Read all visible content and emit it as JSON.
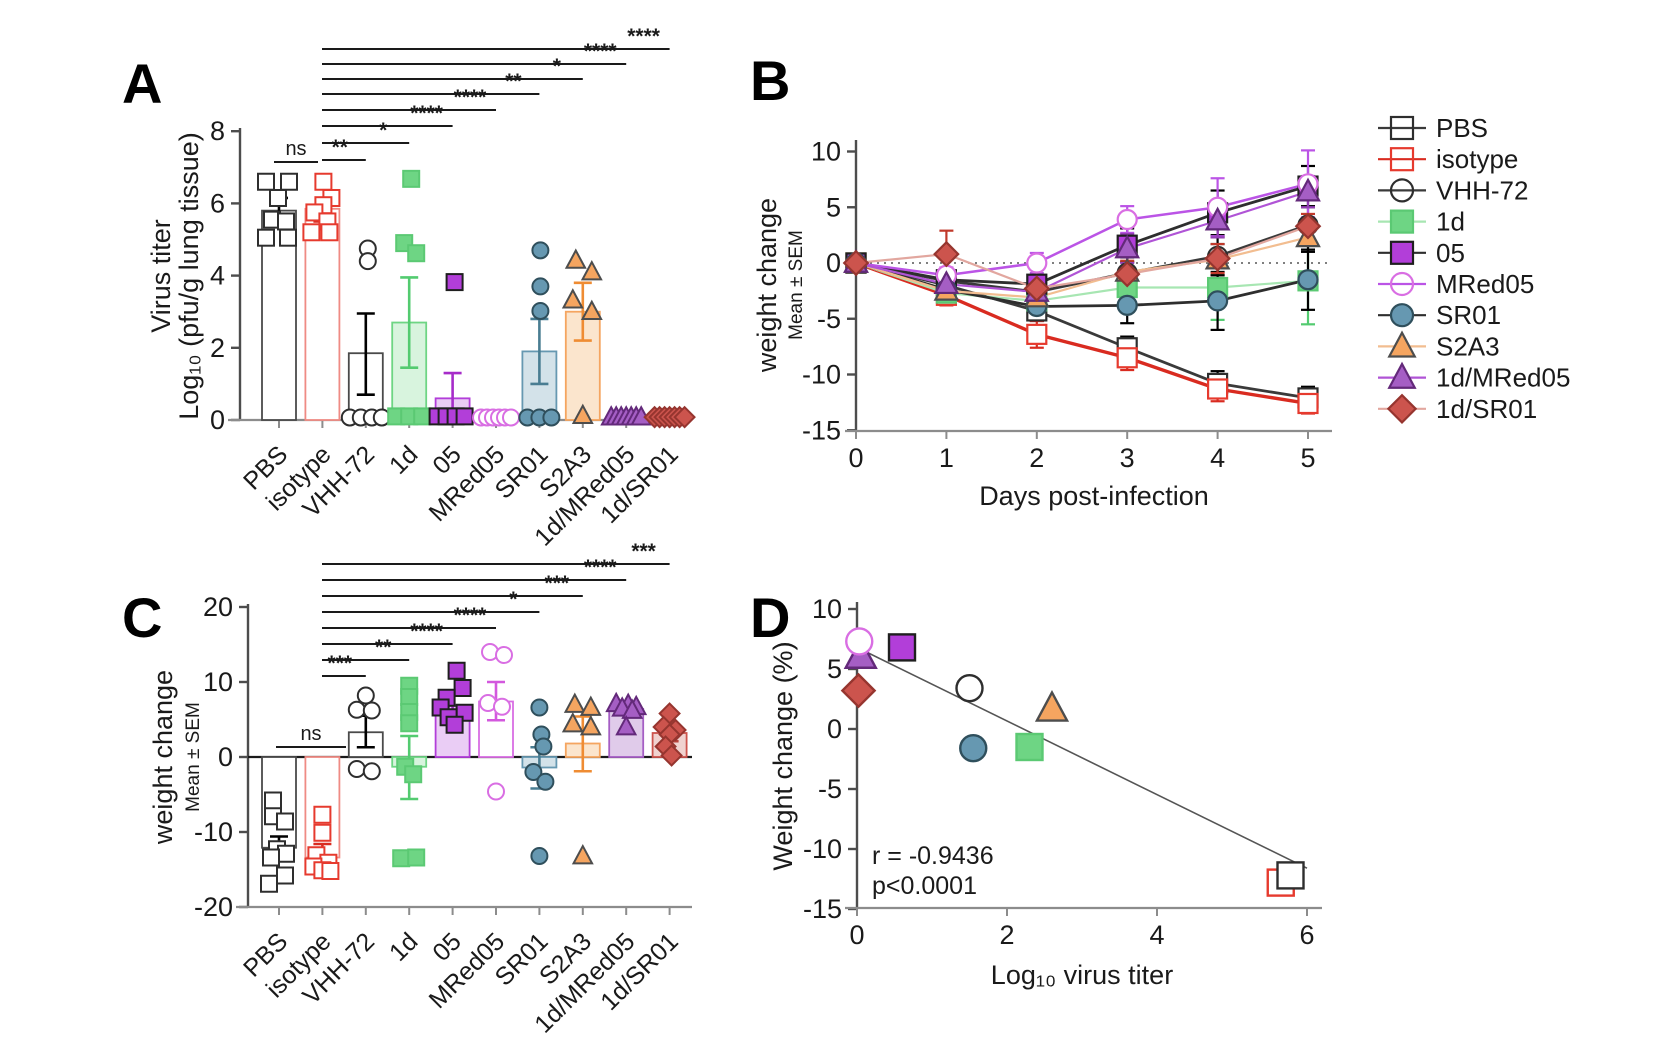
{
  "figure": {
    "panel_letters": [
      "A",
      "B",
      "C",
      "D"
    ],
    "background": "#ffffff"
  },
  "groups": [
    {
      "name": "PBS",
      "marker": "square",
      "filled": false,
      "color": "#2e2e2e",
      "edge": "#2e2e2e",
      "line_color": "#3a3a3a",
      "err_color": "#000000",
      "bar_fill": "#ffffff",
      "bar_edge": "#4a4a4a"
    },
    {
      "name": "isotype",
      "marker": "square",
      "filled": false,
      "color": "#e63a2e",
      "edge": "#e63a2e",
      "line_color": "#d92b20",
      "err_color": "#d92b20",
      "bar_fill": "#ffffff",
      "bar_edge": "#ef8b84"
    },
    {
      "name": "VHH-72",
      "marker": "circle",
      "filled": false,
      "color": "#2e2e2e",
      "edge": "#2e2e2e",
      "line_color": "#3a3a3a",
      "err_color": "#000000",
      "bar_fill": "#ffffff",
      "bar_edge": "#4a4a4a"
    },
    {
      "name": "1d",
      "marker": "square",
      "filled": true,
      "color": "#6ed584",
      "edge": "#5bc973",
      "line_color": "#a7e6b2",
      "err_color": "#53cb70",
      "bar_fill": "#d8f4de",
      "bar_edge": "#6ed584"
    },
    {
      "name": "05",
      "marker": "square",
      "filled": true,
      "color": "#b23ed9",
      "edge": "#1f1f1f",
      "line_color": "#2e2e2e",
      "err_color": "#a62cc9",
      "bar_fill": "#eacdf5",
      "bar_edge": "#b23ed9"
    },
    {
      "name": "MRed05",
      "marker": "circle",
      "filled": false,
      "color": "#d96ee3",
      "edge": "#d96ee3",
      "line_color": "#bb54e6",
      "err_color": "#d358de",
      "bar_fill": "#ffffff",
      "bar_edge": "#d96ee3"
    },
    {
      "name": "SR01",
      "marker": "circle",
      "filled": true,
      "color": "#6698b1",
      "edge": "#2f4f5c",
      "line_color": "#2e2e2e",
      "err_color": "#497d92",
      "bar_fill": "#d3e2e9",
      "bar_edge": "#6698b1"
    },
    {
      "name": "S2A3",
      "marker": "triangle",
      "filled": true,
      "color": "#f5a560",
      "edge": "#4d4d4d",
      "line_color": "#f2bd90",
      "err_color": "#ef8c33",
      "bar_fill": "#fbe5cd",
      "bar_edge": "#f5a560"
    },
    {
      "name": "1d/MRed05",
      "marker": "triangle",
      "filled": true,
      "color": "#a55ec4",
      "edge": "#63297a",
      "line_color": "#b054d6",
      "err_color": "#8e3bac",
      "bar_fill": "#e0cbea",
      "bar_edge": "#a55ec4"
    },
    {
      "name": "1d/SR01",
      "marker": "diamond",
      "filled": true,
      "color": "#cc544d",
      "edge": "#96352f",
      "line_color": "#e2a79f",
      "err_color": "#b8433c",
      "bar_fill": "#f0d2cf",
      "bar_edge": "#cc544d"
    }
  ],
  "legend": {
    "items": [
      "PBS",
      "isotype",
      "VHH-72",
      "1d",
      "05",
      "MRed05",
      "SR01",
      "S2A3",
      "1d/MRed05",
      "1d/SR01"
    ]
  },
  "chart_data": [
    {
      "id": "A",
      "type": "bar",
      "ylabel_lines": [
        "Virus titer",
        "Log₁₀ (pfu/g lung tissue)"
      ],
      "ylim": [
        0,
        8
      ],
      "yticks": [
        0,
        2,
        4,
        6,
        8
      ],
      "categories": [
        "PBS",
        "isotype",
        "VHH-72",
        "1d",
        "05",
        "MRed05",
        "SR01",
        "S2A3",
        "1d/MRed05",
        "1d/SR01"
      ],
      "bars": [
        5.8,
        5.85,
        1.85,
        2.7,
        0.6,
        0.07,
        1.9,
        3.0,
        0,
        0
      ],
      "err_low": [
        5.55,
        5.5,
        0.7,
        1.45,
        0,
        0,
        1.0,
        2.2,
        0,
        0
      ],
      "err_high": [
        6.15,
        5.95,
        2.95,
        3.95,
        1.3,
        0.16,
        2.8,
        3.8,
        0,
        0
      ],
      "points": [
        [
          [
            -13,
            6.6
          ],
          [
            10,
            6.6
          ],
          [
            -1,
            6.15
          ],
          [
            -7,
            5.55
          ],
          [
            7,
            5.5
          ],
          [
            -13,
            5.05
          ],
          [
            9,
            5.05
          ]
        ],
        [
          [
            1,
            6.6
          ],
          [
            9,
            6.15
          ],
          [
            1,
            5.95
          ],
          [
            -8,
            5.75
          ],
          [
            5,
            5.5
          ],
          [
            -11,
            5.2
          ],
          [
            7,
            5.2
          ]
        ],
        [
          [
            2,
            4.75
          ],
          [
            2,
            4.4
          ],
          [
            -16,
            0.07
          ],
          [
            -5,
            0.07
          ],
          [
            6,
            0.07
          ],
          [
            16,
            0.07
          ]
        ],
        [
          [
            2,
            6.68
          ],
          [
            -5,
            4.9
          ],
          [
            7,
            4.62
          ],
          [
            -13,
            0.1
          ],
          [
            0,
            0.1
          ],
          [
            13,
            0.1
          ]
        ],
        [
          [
            2,
            3.82
          ],
          [
            -15,
            0.1
          ],
          [
            -6,
            0.1
          ],
          [
            3,
            0.1
          ],
          [
            12,
            0.1
          ]
        ],
        [
          [
            -15,
            0.07
          ],
          [
            -9,
            0.07
          ],
          [
            -3,
            0.07
          ],
          [
            3,
            0.07
          ],
          [
            9,
            0.07
          ],
          [
            15,
            0.07
          ]
        ],
        [
          [
            1,
            4.7
          ],
          [
            1,
            3.7
          ],
          [
            1,
            3.02
          ],
          [
            -12,
            0.07
          ],
          [
            0,
            0.07
          ],
          [
            12,
            0.07
          ]
        ],
        [
          [
            -7,
            4.42
          ],
          [
            9,
            4.1
          ],
          [
            -10,
            3.32
          ],
          [
            9,
            3.0
          ],
          [
            0,
            0.12
          ]
        ],
        [
          [
            -15,
            0.08
          ],
          [
            -10,
            0.08
          ],
          [
            -5,
            0.08
          ],
          [
            0,
            0.08
          ],
          [
            5,
            0.08
          ],
          [
            10,
            0.08
          ],
          [
            15,
            0.08
          ]
        ],
        [
          [
            -15,
            0.08
          ],
          [
            -10,
            0.08
          ],
          [
            -5,
            0.08
          ],
          [
            0,
            0.08
          ],
          [
            5,
            0.08
          ],
          [
            10,
            0.08
          ],
          [
            15,
            0.08
          ]
        ]
      ],
      "sig": [
        {
          "a": 0,
          "b": 1,
          "label": "ns"
        },
        {
          "a": 1,
          "b": 2,
          "label": "**"
        },
        {
          "a": 1,
          "b": 3,
          "label": "*"
        },
        {
          "a": 1,
          "b": 4,
          "label": "****"
        },
        {
          "a": 1,
          "b": 5,
          "label": "****"
        },
        {
          "a": 1,
          "b": 6,
          "label": "**"
        },
        {
          "a": 1,
          "b": 7,
          "label": "*"
        },
        {
          "a": 1,
          "b": 8,
          "label": "****"
        },
        {
          "a": 1,
          "b": 9,
          "label": "****"
        }
      ]
    },
    {
      "id": "B",
      "type": "line",
      "xlabel": "Days post-infection",
      "ylabel_lines": [
        "weight change",
        "Mean ± SEM"
      ],
      "xlim": [
        0,
        5
      ],
      "ylim": [
        -15,
        10
      ],
      "xticks": [
        0,
        1,
        2,
        3,
        4,
        5
      ],
      "yticks": [
        -15,
        -10,
        -5,
        0,
        5,
        10
      ],
      "zero_line_dotted": true,
      "x": [
        0,
        1,
        2,
        3,
        4,
        5
      ],
      "series": [
        {
          "group": "PBS",
          "y": [
            0,
            -2.0,
            -4.3,
            -7.6,
            -10.8,
            -12.1
          ],
          "sem": [
            0.4,
            0.6,
            0.9,
            1.0,
            1.1,
            1.0
          ],
          "lw": 2.8,
          "err_color": "#000000"
        },
        {
          "group": "isotype",
          "y": [
            0,
            -2.9,
            -6.4,
            -8.5,
            -11.3,
            -12.6
          ],
          "sem": [
            0.4,
            0.9,
            1.2,
            1.1,
            1.1,
            0.9
          ],
          "lw": 3.4,
          "err_color": "#d92b20"
        },
        {
          "group": "VHH-72",
          "y": [
            0,
            -1.6,
            -2.6,
            -0.9,
            0.6,
            3.4
          ],
          "sem": [
            0.3,
            0.8,
            1.1,
            1.6,
            1.7,
            1.6
          ],
          "lw": 2.8,
          "err_color": "#000000"
        },
        {
          "group": "1d",
          "y": [
            0,
            -2.7,
            -3.4,
            -2.2,
            -2.2,
            -1.6
          ],
          "sem": [
            0.3,
            0.9,
            1.1,
            1.7,
            2.9,
            3.9
          ],
          "lw": 2.2,
          "err_color": "#53cb70"
        },
        {
          "group": "05",
          "y": [
            0,
            -1.5,
            -1.9,
            1.6,
            4.5,
            6.9
          ],
          "sem": [
            0.3,
            0.8,
            1.3,
            1.5,
            2.0,
            1.8
          ],
          "lw": 2.8,
          "err_color": "#000000"
        },
        {
          "group": "MRed05",
          "y": [
            0,
            -1.1,
            0.0,
            3.9,
            5.0,
            7.1
          ],
          "sem": [
            0.3,
            0.7,
            0.9,
            1.2,
            2.6,
            3.0
          ],
          "lw": 2.5,
          "err_color": "#bb54e6"
        },
        {
          "group": "SR01",
          "y": [
            0,
            -2.4,
            -3.9,
            -3.8,
            -3.4,
            -1.5
          ],
          "sem": [
            0.3,
            0.8,
            1.0,
            1.6,
            2.6,
            2.7
          ],
          "lw": 2.8,
          "err_color": "#000000"
        },
        {
          "group": "S2A3",
          "y": [
            0,
            -2.5,
            -3.1,
            -0.8,
            0.3,
            2.3
          ],
          "sem": [
            0.3,
            0.8,
            1.1,
            1.3,
            1.4,
            1.3
          ],
          "lw": 2.2,
          "err_color": "#000000"
        },
        {
          "group": "1d/MRed05",
          "y": [
            0,
            -1.9,
            -2.6,
            1.3,
            3.8,
            6.4
          ],
          "sem": [
            0.3,
            0.7,
            0.9,
            1.3,
            1.5,
            1.4
          ],
          "lw": 2.2,
          "err_color": "#9440b5"
        },
        {
          "group": "1d/SR01",
          "y": [
            0,
            0.8,
            -2.3,
            -1.0,
            0.4,
            3.3
          ],
          "sem": [
            0.3,
            2.1,
            1.1,
            1.2,
            1.3,
            1.1
          ],
          "lw": 2.2,
          "err_color": "#c0392b"
        }
      ]
    },
    {
      "id": "C",
      "type": "bar",
      "ylabel_lines": [
        "weight change",
        "Mean ± SEM"
      ],
      "ylim": [
        -20,
        20
      ],
      "yticks": [
        -20,
        -10,
        0,
        10,
        20
      ],
      "categories": [
        "PBS",
        "isotype",
        "VHH-72",
        "1d",
        "05",
        "MRed05",
        "SR01",
        "S2A3",
        "1d/MRed05",
        "1d/SR01"
      ],
      "bars": [
        -12.1,
        -13.4,
        3.3,
        -1.3,
        6.8,
        7.4,
        -1.4,
        1.8,
        6.4,
        3.2
      ],
      "err_low": [
        -13.7,
        -14.4,
        1.3,
        -5.6,
        5.4,
        4.9,
        -4.2,
        -1.9,
        5.7,
        2.1
      ],
      "err_high": [
        -10.6,
        -11.6,
        5.5,
        2.8,
        8.2,
        10.0,
        1.3,
        5.4,
        7.1,
        4.3
      ],
      "points": [
        [
          [
            -6,
            -5.8
          ],
          [
            -6,
            -7.9
          ],
          [
            6,
            -8.6
          ],
          [
            -2,
            -12.3
          ],
          [
            7,
            -12.9
          ],
          [
            -8,
            -13.4
          ],
          [
            6,
            -15.8
          ],
          [
            -10,
            -16.9
          ]
        ],
        [
          [
            0,
            -7.7
          ],
          [
            0,
            -10.1
          ],
          [
            -6,
            -13.1
          ],
          [
            6,
            -14.1
          ],
          [
            -9,
            -14.6
          ],
          [
            0,
            -15.1
          ],
          [
            8,
            -15.2
          ]
        ],
        [
          [
            0,
            8.2
          ],
          [
            -9,
            6.3
          ],
          [
            6,
            6.2
          ],
          [
            -9,
            -1.6
          ],
          [
            6,
            -1.9
          ]
        ],
        [
          [
            0,
            9.5
          ],
          [
            0,
            8.0
          ],
          [
            0,
            6.0
          ],
          [
            0,
            4.5
          ],
          [
            -4,
            -1.3
          ],
          [
            4,
            -2.3
          ],
          [
            -8,
            -13.5
          ],
          [
            7,
            -13.4
          ]
        ],
        [
          [
            4,
            11.5
          ],
          [
            10,
            9.2
          ],
          [
            -6,
            7.9
          ],
          [
            -12,
            6.6
          ],
          [
            12,
            5.9
          ],
          [
            -4,
            5.3
          ],
          [
            2,
            4.3
          ]
        ],
        [
          [
            -6,
            14.0
          ],
          [
            8,
            13.6
          ],
          [
            -8,
            7.2
          ],
          [
            6,
            6.7
          ],
          [
            0,
            -4.6
          ]
        ],
        [
          [
            0,
            6.6
          ],
          [
            2,
            3.0
          ],
          [
            4,
            1.4
          ],
          [
            -6,
            -2.0
          ],
          [
            6,
            -3.3
          ],
          [
            0,
            -13.2
          ]
        ],
        [
          [
            -8,
            7.0
          ],
          [
            8,
            6.6
          ],
          [
            -10,
            4.4
          ],
          [
            8,
            4.0
          ],
          [
            0,
            -13.2
          ]
        ],
        [
          [
            -10,
            7.1
          ],
          [
            2,
            7.0
          ],
          [
            10,
            6.7
          ],
          [
            -4,
            6.5
          ],
          [
            6,
            6.2
          ],
          [
            0,
            4.0
          ]
        ],
        [
          [
            0,
            5.8
          ],
          [
            -6,
            4.0
          ],
          [
            6,
            3.6
          ],
          [
            0,
            3.0
          ],
          [
            -4,
            1.4
          ],
          [
            2,
            0.2
          ]
        ]
      ],
      "sig": [
        {
          "a": 0,
          "b": 1,
          "label": "ns"
        },
        {
          "a": 1,
          "b": 2,
          "label": "***"
        },
        {
          "a": 1,
          "b": 3,
          "label": "**"
        },
        {
          "a": 1,
          "b": 4,
          "label": "****"
        },
        {
          "a": 1,
          "b": 5,
          "label": "****"
        },
        {
          "a": 1,
          "b": 6,
          "label": "*"
        },
        {
          "a": 1,
          "b": 7,
          "label": "***"
        },
        {
          "a": 1,
          "b": 8,
          "label": "****"
        },
        {
          "a": 1,
          "b": 9,
          "label": "***"
        }
      ]
    },
    {
      "id": "D",
      "type": "scatter",
      "xlabel": "Log₁₀ virus titer",
      "ylabel": "Weight change (%)",
      "xlim": [
        0,
        6
      ],
      "ylim": [
        -15,
        10
      ],
      "xticks": [
        0,
        2,
        4,
        6
      ],
      "yticks": [
        -15,
        -10,
        -5,
        0,
        5,
        10
      ],
      "points": [
        {
          "group": "isotype",
          "x": 5.65,
          "y": -12.8
        },
        {
          "group": "PBS",
          "x": 5.78,
          "y": -12.2
        },
        {
          "group": "1d",
          "x": 2.3,
          "y": -1.5
        },
        {
          "group": "SR01",
          "x": 1.55,
          "y": -1.6
        },
        {
          "group": "S2A3",
          "x": 2.6,
          "y": 1.7
        },
        {
          "group": "VHH-72",
          "x": 1.5,
          "y": 3.4
        },
        {
          "group": "1d/SR01",
          "x": 0.02,
          "y": 3.2
        },
        {
          "group": "1d/MRed05",
          "x": 0.05,
          "y": 6.1
        },
        {
          "group": "MRed05",
          "x": 0.03,
          "y": 7.3
        },
        {
          "group": "05",
          "x": 0.6,
          "y": 6.8
        }
      ],
      "fit_line": {
        "x1": 0,
        "y1": 6.8,
        "x2": 6,
        "y2": -11.6
      },
      "annotation": [
        "r = -0.9436",
        "p<0.0001"
      ]
    }
  ]
}
